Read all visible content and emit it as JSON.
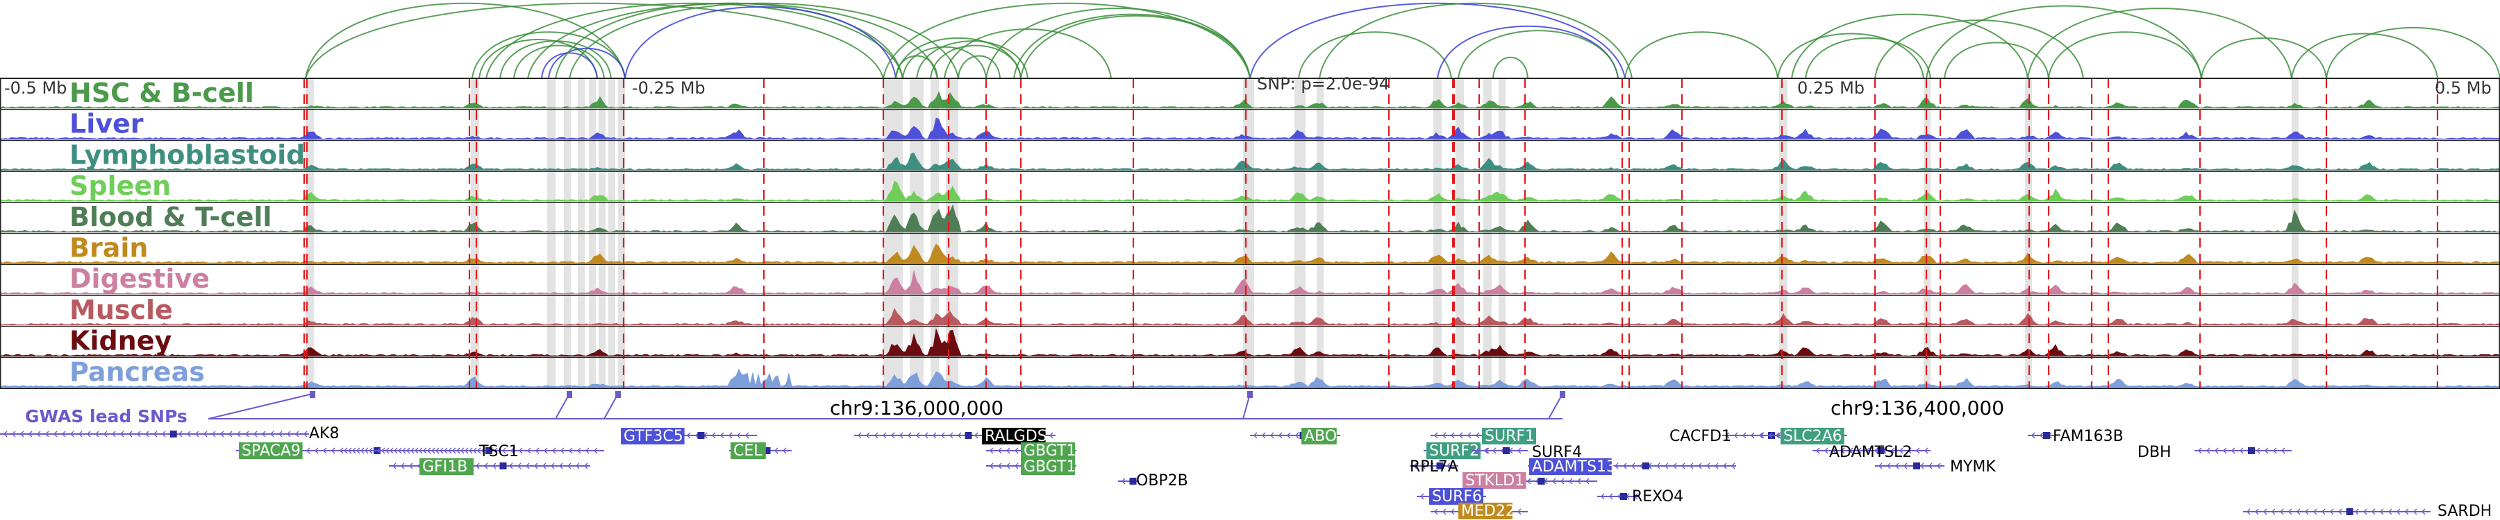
{
  "axis_labels": {
    "left": "-0.5 Mb",
    "left_mid": "-0.25 Mb",
    "snp": "SNP: p=2.0e-94",
    "right_mid": "0.25 Mb",
    "right": "0.5 Mb"
  },
  "coordinates": {
    "left": "chr9:136,000,000",
    "right": "chr9:136,400,000"
  },
  "gwas_label": "GWAS lead SNPs",
  "tracks": [
    {
      "name": "HSC & B-cell",
      "color": "#4a9a4a"
    },
    {
      "name": "Liver",
      "color": "#4d50d8"
    },
    {
      "name": "Lymphoblastoid",
      "color": "#3f8f80"
    },
    {
      "name": "Spleen",
      "color": "#6fce59"
    },
    {
      "name": "Blood & T-cell",
      "color": "#4f7d55"
    },
    {
      "name": "Brain",
      "color": "#c08a1f"
    },
    {
      "name": "Digestive",
      "color": "#cd7fa2"
    },
    {
      "name": "Muscle",
      "color": "#b85a60"
    },
    {
      "name": "Kidney",
      "color": "#6b0c10"
    },
    {
      "name": "Pancreas",
      "color": "#7f9fdb"
    }
  ],
  "genes": [
    {
      "label": "AK8",
      "box": false
    },
    {
      "label": "SPACA9",
      "box": true,
      "color": "#4fa64f"
    },
    {
      "label": "TSC1",
      "box": false
    },
    {
      "label": "GFI1B",
      "box": true,
      "color": "#4fa64f"
    },
    {
      "label": "GTF3C5",
      "box": true,
      "color": "#4d50d8"
    },
    {
      "label": "CEL",
      "box": true,
      "color": "#4fa64f"
    },
    {
      "label": "RALGDS",
      "box": true,
      "color": "#000000"
    },
    {
      "label": "GBGT1",
      "box": true,
      "color": "#4fa64f"
    },
    {
      "label": "GBGT1",
      "box": true,
      "color": "#4fa64f"
    },
    {
      "label": "OBP2B",
      "box": false
    },
    {
      "label": "ABO",
      "box": true,
      "color": "#4fa64f"
    },
    {
      "label": "SURF1",
      "box": true,
      "color": "#3f9f80"
    },
    {
      "label": "SURF2",
      "box": true,
      "color": "#3f9f80"
    },
    {
      "label": "SURF4",
      "box": false
    },
    {
      "label": "RPL7A",
      "box": false
    },
    {
      "label": "ADAMTS13",
      "box": true,
      "color": "#4d50d8"
    },
    {
      "label": "STKLD1",
      "box": true,
      "color": "#cd7fa2"
    },
    {
      "label": "SURF6",
      "box": true,
      "color": "#4d50d8"
    },
    {
      "label": "MED22",
      "box": true,
      "color": "#c08a1f"
    },
    {
      "label": "REXO4",
      "box": false
    },
    {
      "label": "CACFD1",
      "box": false
    },
    {
      "label": "SLC2A6",
      "box": true,
      "color": "#3f9f80"
    },
    {
      "label": "ADAMTSL2",
      "box": false
    },
    {
      "label": "MYMK",
      "box": false
    },
    {
      "label": "FAM163B",
      "box": false
    },
    {
      "label": "DBH",
      "box": false
    },
    {
      "label": "SARDH",
      "box": false
    }
  ],
  "colors": {
    "grid": "#222222",
    "snp_marker": "#e41a1c",
    "highlight": "#d9d9d9",
    "gwas": "#6a5acd",
    "arc_green": "#3d8f3d",
    "arc_blue": "#3b3fdc"
  }
}
